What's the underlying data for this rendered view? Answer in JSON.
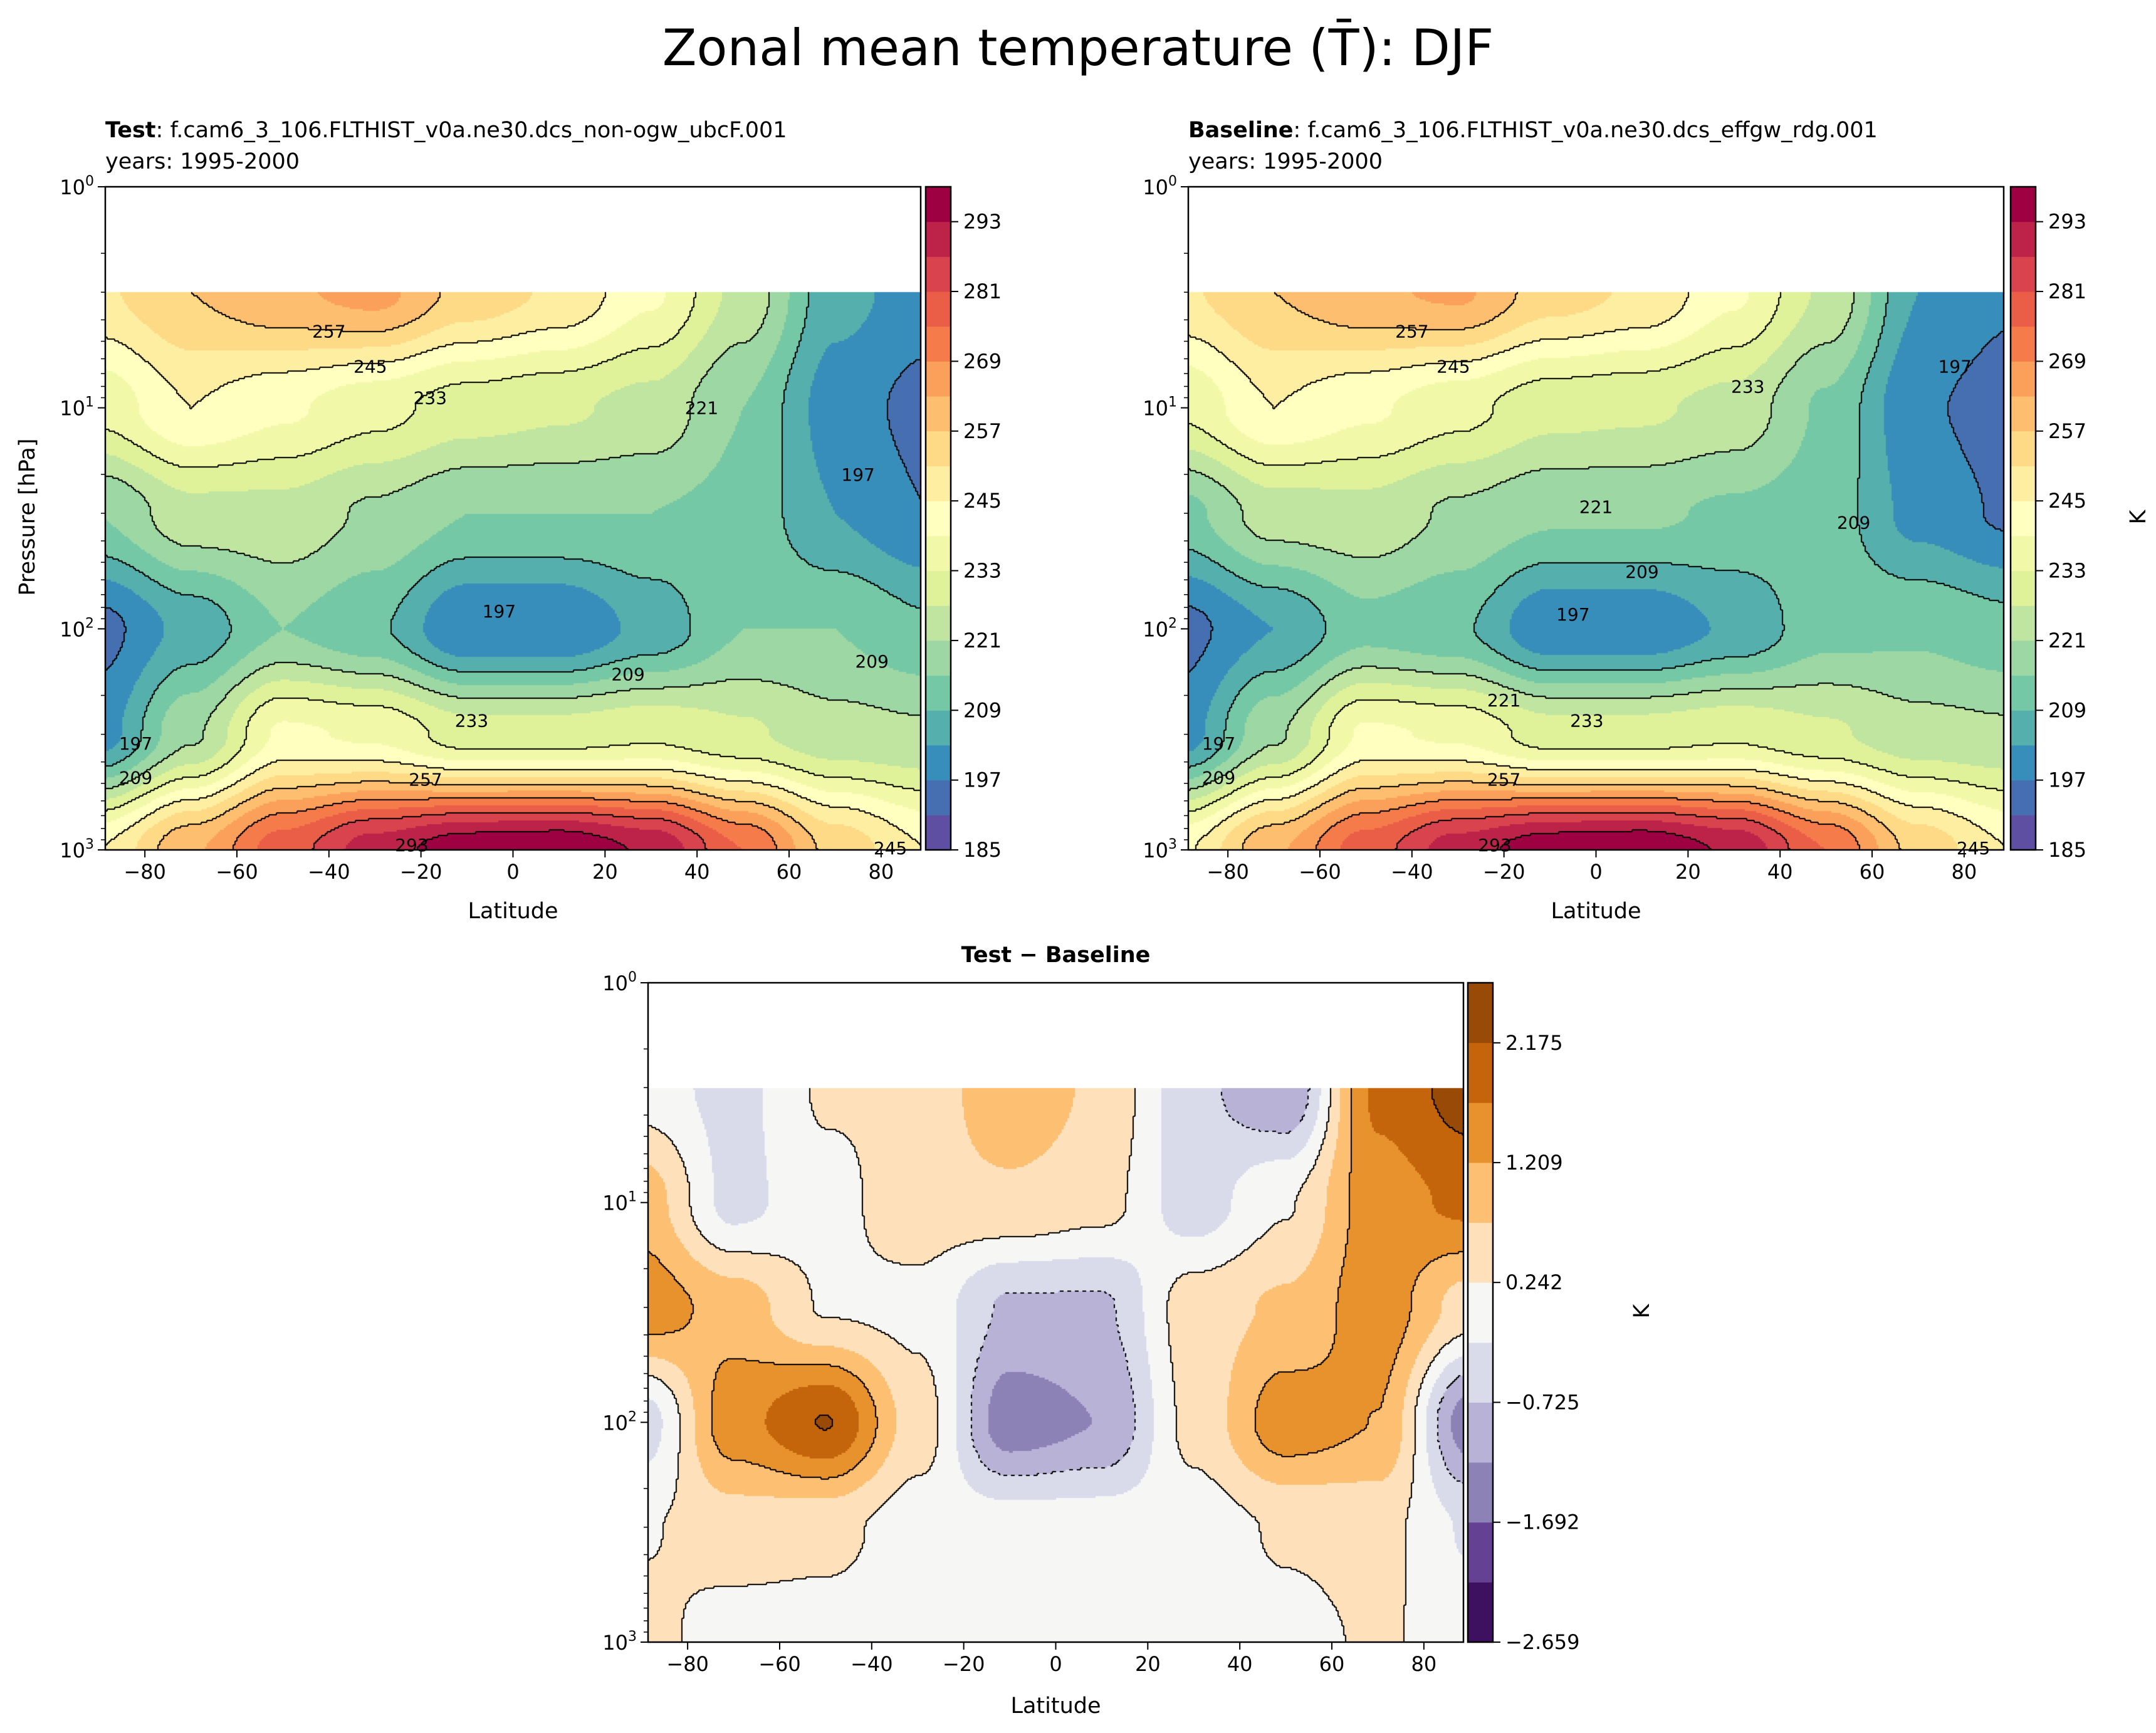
{
  "title": "Zonal mean temperature (T̄): DJF",
  "chart_data": [
    {
      "type": "heatmap",
      "id": "test",
      "title_bold": "Test",
      "title_rest": ": f.cam6_3_106.FLTHIST_v0a.ne30.dcs_non-ogw_ubcF.001",
      "subtitle": "years: 1995-2000",
      "xlabel": "Latitude",
      "ylabel": "Pressure [hPa]",
      "xlim": [
        -88.6,
        88.6
      ],
      "ylim": [
        1000,
        1
      ],
      "yscale": "log",
      "xticks": [
        -80,
        -60,
        -40,
        -20,
        0,
        20,
        40,
        60,
        80
      ],
      "yticks": [
        {
          "base": "10",
          "exp": "0",
          "v": 1
        },
        {
          "base": "10",
          "exp": "1",
          "v": 10
        },
        {
          "base": "10",
          "exp": "2",
          "v": 100
        },
        {
          "base": "10",
          "exp": "3",
          "v": 1000
        }
      ],
      "colorbar": {
        "label": "",
        "levels_min": 185,
        "levels_step": 6,
        "n_levels": 19,
        "ticks": [
          185,
          197,
          209,
          221,
          233,
          245,
          257,
          269,
          281,
          293
        ]
      },
      "cmap": "spectral_r",
      "lat": [
        -90,
        -70,
        -50,
        -30,
        -10,
        10,
        30,
        50,
        70,
        90
      ],
      "pressure": [
        3,
        10,
        30,
        100,
        300,
        1000
      ],
      "values": [
        [
          250,
          257,
          262,
          265,
          255,
          250,
          240,
          225,
          205,
          200
        ],
        [
          235,
          245,
          240,
          235,
          230,
          228,
          225,
          215,
          200,
          195
        ],
        [
          215,
          225,
          225,
          220,
          215,
          215,
          215,
          213,
          203,
          197
        ],
        [
          195,
          205,
          215,
          210,
          197,
          197,
          205,
          215,
          215,
          210
        ],
        [
          200,
          220,
          240,
          238,
          230,
          230,
          232,
          228,
          223,
          222
        ],
        [
          245,
          262,
          278,
          290,
          297,
          298,
          292,
          275,
          255,
          245
        ]
      ],
      "contour_labels": [
        {
          "text": "257",
          "lat": -40,
          "p": 4.5
        },
        {
          "text": "245",
          "lat": -31,
          "p": 6.5
        },
        {
          "text": "233",
          "lat": -18,
          "p": 9
        },
        {
          "text": "221",
          "lat": 41,
          "p": 10
        },
        {
          "text": "197",
          "lat": 75,
          "p": 20
        },
        {
          "text": "197",
          "lat": -3,
          "p": 83
        },
        {
          "text": "209",
          "lat": 25,
          "p": 160
        },
        {
          "text": "209",
          "lat": 78,
          "p": 140
        },
        {
          "text": "233",
          "lat": -9,
          "p": 260
        },
        {
          "text": "257",
          "lat": -19,
          "p": 480
        },
        {
          "text": "197",
          "lat": -82,
          "p": 330
        },
        {
          "text": "209",
          "lat": -82,
          "p": 470
        },
        {
          "text": "293",
          "lat": -22,
          "p": 950
        },
        {
          "text": "245",
          "lat": 82,
          "p": 980
        }
      ]
    },
    {
      "type": "heatmap",
      "id": "baseline",
      "title_bold": "Baseline",
      "title_rest": ": f.cam6_3_106.FLTHIST_v0a.ne30.dcs_effgw_rdg.001",
      "subtitle": "years: 1995-2000",
      "xlabel": "Latitude",
      "ylabel": "",
      "xlim": [
        -88.6,
        88.6
      ],
      "ylim": [
        1000,
        1
      ],
      "yscale": "log",
      "xticks": [
        -80,
        -60,
        -40,
        -20,
        0,
        20,
        40,
        60,
        80
      ],
      "yticks": [
        {
          "base": "10",
          "exp": "0",
          "v": 1
        },
        {
          "base": "10",
          "exp": "1",
          "v": 10
        },
        {
          "base": "10",
          "exp": "2",
          "v": 100
        },
        {
          "base": "10",
          "exp": "3",
          "v": 1000
        }
      ],
      "colorbar": {
        "label": "K",
        "levels_min": 185,
        "levels_step": 6,
        "n_levels": 19,
        "ticks": [
          185,
          197,
          209,
          221,
          233,
          245,
          257,
          269,
          281,
          293
        ]
      },
      "cmap": "spectral_r",
      "lat": [
        -90,
        -70,
        -50,
        -30,
        -10,
        10,
        30,
        50,
        70,
        90
      ],
      "pressure": [
        3,
        10,
        30,
        100,
        300,
        1000
      ],
      "values": [
        [
          250,
          257,
          262,
          264,
          254,
          250,
          240,
          226,
          203,
          198
        ],
        [
          234,
          245,
          240,
          235,
          229,
          228,
          225,
          214,
          198,
          194
        ],
        [
          213,
          224,
          225,
          220,
          216,
          216,
          214,
          212,
          201,
          196
        ],
        [
          195,
          203,
          213,
          210,
          198,
          198,
          204,
          213,
          214,
          211
        ],
        [
          200,
          220,
          240,
          238,
          230,
          230,
          232,
          228,
          223,
          222
        ],
        [
          244,
          262,
          278,
          290,
          297,
          298,
          292,
          275,
          255,
          245
        ]
      ],
      "contour_labels": [
        {
          "text": "257",
          "lat": -40,
          "p": 4.5
        },
        {
          "text": "245",
          "lat": -31,
          "p": 6.5
        },
        {
          "text": "233",
          "lat": 33,
          "p": 8
        },
        {
          "text": "197",
          "lat": 78,
          "p": 6.5
        },
        {
          "text": "221",
          "lat": 0,
          "p": 28
        },
        {
          "text": "209",
          "lat": 10,
          "p": 55
        },
        {
          "text": "209",
          "lat": 56,
          "p": 33
        },
        {
          "text": "197",
          "lat": -5,
          "p": 86
        },
        {
          "text": "221",
          "lat": -20,
          "p": 210
        },
        {
          "text": "233",
          "lat": -2,
          "p": 260
        },
        {
          "text": "257",
          "lat": -20,
          "p": 480
        },
        {
          "text": "197",
          "lat": -82,
          "p": 330
        },
        {
          "text": "209",
          "lat": -82,
          "p": 470
        },
        {
          "text": "293",
          "lat": -22,
          "p": 950
        },
        {
          "text": "245",
          "lat": 82,
          "p": 980
        }
      ]
    },
    {
      "type": "heatmap",
      "id": "diff",
      "title_bold": "Test − Baseline",
      "title_rest": "",
      "subtitle": "",
      "xlabel": "Latitude",
      "ylabel": "",
      "xlim": [
        -88.6,
        88.6
      ],
      "ylim": [
        1000,
        1
      ],
      "yscale": "log",
      "xticks": [
        -80,
        -60,
        -40,
        -20,
        0,
        20,
        40,
        60,
        80
      ],
      "yticks": [
        {
          "base": "10",
          "exp": "0",
          "v": 1
        },
        {
          "base": "10",
          "exp": "1",
          "v": 10
        },
        {
          "base": "10",
          "exp": "2",
          "v": 100
        },
        {
          "base": "10",
          "exp": "3",
          "v": 1000
        }
      ],
      "colorbar": {
        "label": "K",
        "levels_min": -2.659,
        "levels_step": 0.4835,
        "n_levels": 11,
        "ticks": [
          "-2.659",
          "-1.692",
          "-0.725",
          "0.242",
          "1.209",
          "2.175"
        ]
      },
      "cmap": "puor_r",
      "lat": [
        -90,
        -70,
        -50,
        -30,
        -10,
        10,
        30,
        50,
        70,
        90
      ],
      "pressure": [
        3,
        10,
        30,
        100,
        300,
        1000
      ],
      "values": [
        [
          0.0,
          -0.4,
          0.3,
          0.3,
          1.2,
          0.6,
          -0.6,
          -1.2,
          1.8,
          2.4
        ],
        [
          1.0,
          -0.4,
          0.1,
          0.5,
          0.6,
          0.4,
          -0.5,
          0.2,
          1.5,
          1.8
        ],
        [
          1.5,
          1.0,
          0.2,
          0.1,
          -0.8,
          -0.8,
          0.5,
          0.8,
          1.5,
          0.5
        ],
        [
          -0.5,
          1.5,
          2.2,
          0.5,
          -1.5,
          -1.2,
          0.4,
          1.5,
          1.2,
          -1.5
        ],
        [
          0.2,
          0.5,
          0.4,
          0.0,
          0.0,
          0.0,
          0.0,
          0.3,
          0.4,
          -0.3
        ],
        [
          0.4,
          0.0,
          0.0,
          0.0,
          0.0,
          0.0,
          0.0,
          0.1,
          0.3,
          0.0
        ]
      ],
      "contour_labels": []
    }
  ],
  "colormaps": {
    "spectral_r": [
      "#5e4fa2",
      "#3288bd",
      "#66c2a5",
      "#abdda4",
      "#e6f598",
      "#ffffbf",
      "#fee08b",
      "#fdae61",
      "#f46d43",
      "#d53e4f",
      "#9e0142"
    ],
    "puor_r": [
      "#3e1060",
      "#644193",
      "#8d82b6",
      "#b8b3d6",
      "#d9dbea",
      "#f6f6f5",
      "#fee1bb",
      "#fdbf71",
      "#e8922e",
      "#c4650c",
      "#994a07"
    ]
  }
}
